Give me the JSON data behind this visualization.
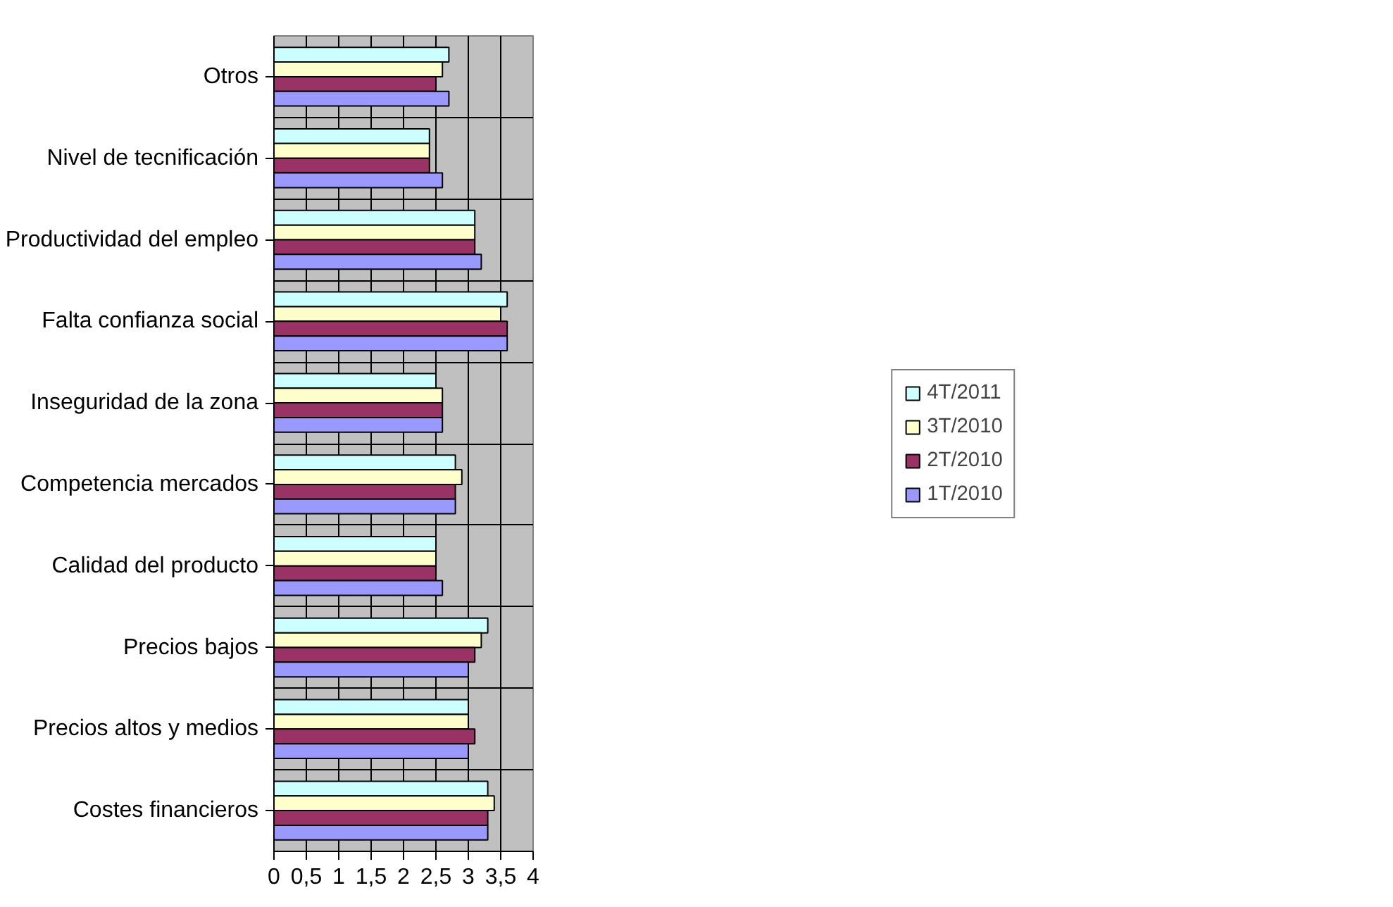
{
  "chart_data": {
    "type": "bar",
    "orientation": "horizontal",
    "categories": [
      "Otros",
      "Nivel de tecnificación",
      "Productividad del empleo",
      "Falta confianza social",
      "Inseguridad de la zona",
      "Competencia mercados",
      "Calidad del producto",
      "Precios bajos",
      "Precios altos y medios",
      "Costes financieros"
    ],
    "series": [
      {
        "name": "4T/2011",
        "color": "#ccffff",
        "values": [
          2.7,
          2.4,
          3.1,
          3.6,
          2.5,
          2.8,
          2.5,
          3.3,
          3.0,
          3.3
        ]
      },
      {
        "name": "3T/2010",
        "color": "#ffffcc",
        "values": [
          2.6,
          2.4,
          3.1,
          3.5,
          2.6,
          2.9,
          2.5,
          3.2,
          3.0,
          3.4
        ]
      },
      {
        "name": "2T/2010",
        "color": "#993366",
        "values": [
          2.5,
          2.4,
          3.1,
          3.6,
          2.6,
          2.8,
          2.5,
          3.1,
          3.1,
          3.3
        ]
      },
      {
        "name": "1T/2010",
        "color": "#9999ff",
        "values": [
          2.7,
          2.6,
          3.2,
          3.6,
          2.6,
          2.8,
          2.6,
          3.0,
          3.0,
          3.3
        ]
      }
    ],
    "xlim": [
      0,
      4
    ],
    "xticks": [
      0,
      {
        "value": 0.5,
        "label": "0,5"
      },
      1,
      {
        "value": 1.5,
        "label": "1,5"
      },
      2,
      {
        "value": 2.5,
        "label": "2,5"
      },
      3,
      {
        "value": 3.5,
        "label": "3,5"
      },
      4
    ],
    "grid": true,
    "legend": "right"
  }
}
